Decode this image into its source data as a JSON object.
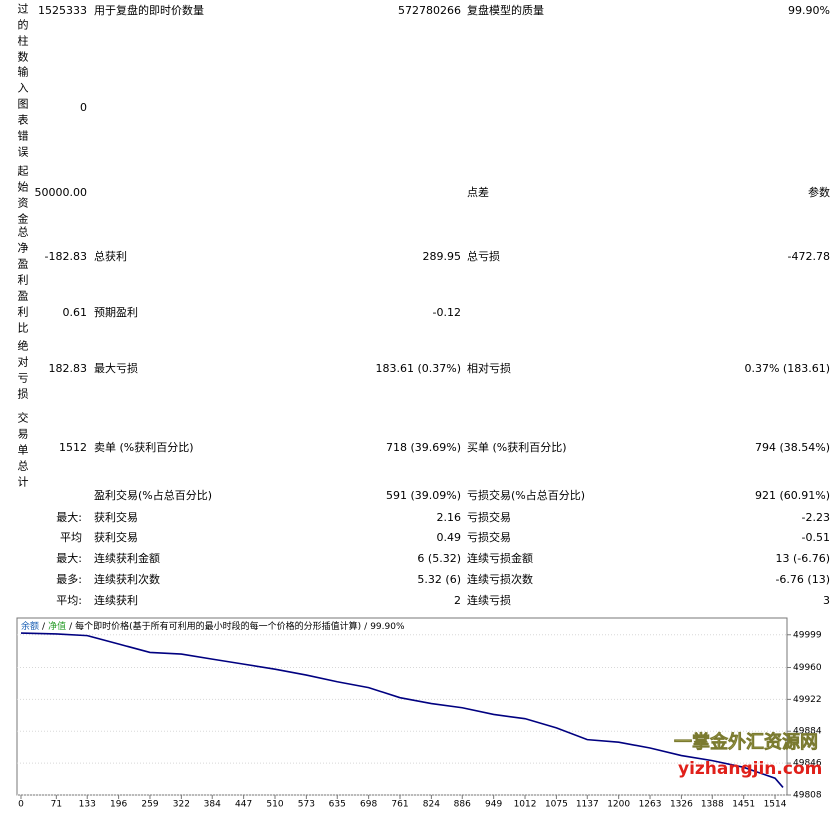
{
  "report": {
    "rows": [
      {
        "side": "过的柱数",
        "v1": "1525333",
        "l2": "用于复盘的即时价数量",
        "v2": "572780266",
        "l3": "复盘模型的质量",
        "v3": "99.90%"
      },
      {
        "side": "输入图表错误",
        "v1": "0"
      },
      {
        "side": "起始资金",
        "v1": "50000.00",
        "l3": "点差",
        "v3": "参数"
      },
      {
        "side": "总净盈利",
        "v1": "-182.83",
        "l2": "总获利",
        "v2": "289.95",
        "l3": "总亏损",
        "v3": "-472.78"
      },
      {
        "side": "盈利比",
        "v1": "0.61",
        "l2": "预期盈利",
        "v2": "-0.12"
      },
      {
        "side": "绝对亏损",
        "v1": "182.83",
        "l2": "最大亏损",
        "v2": "183.61 (0.37%)",
        "l3": "相对亏损",
        "v3": "0.37% (183.61)"
      },
      {
        "side": "交易单总计",
        "v1": "1512",
        "l2": "卖单 (%获利百分比)",
        "v2": "718 (39.69%)",
        "l3": "买单 (%获利百分比)",
        "v3": "794 (38.54%)"
      },
      {
        "l2": "盈利交易(%占总百分比)",
        "v2": "591 (39.09%)",
        "l3": "亏损交易(%占总百分比)",
        "v3": "921 (60.91%)"
      },
      {
        "pre": "最大:",
        "l2": "获利交易",
        "v2": "2.16",
        "l3": "亏损交易",
        "v3": "-2.23"
      },
      {
        "pre": "平均",
        "l2": "获利交易",
        "v2": "0.49",
        "l3": "亏损交易",
        "v3": "-0.51"
      },
      {
        "pre": "最大:",
        "l2": "连续获利金额",
        "v2": "6 (5.32)",
        "l3": "连续亏损金额",
        "v3": "13 (-6.76)"
      },
      {
        "pre": "最多:",
        "l2": "连续获利次数",
        "v2": "5.32 (6)",
        "l3": "连续亏损次数",
        "v3": "-6.76 (13)"
      },
      {
        "pre": "平均:",
        "l2": "连续获利",
        "v2": "2",
        "l3": "连续亏损",
        "v3": "3"
      }
    ]
  },
  "chart_data": {
    "type": "line",
    "legend": [
      "余额",
      "净值",
      "每个即时价格(基于所有可利用的最小时段的每一个价格的分形插值计算)",
      "99.90%"
    ],
    "legend_separator": "/",
    "x": [
      0,
      71,
      133,
      196,
      259,
      322,
      384,
      447,
      510,
      573,
      635,
      698,
      761,
      824,
      886,
      949,
      1012,
      1075,
      1137,
      1200,
      1263,
      1326,
      1388,
      1451,
      1514,
      1530
    ],
    "series": [
      {
        "name": "余额",
        "color": "#000080",
        "values": [
          50001,
          50000,
          49998,
          49988,
          49978,
          49976,
          49970,
          49964,
          49958,
          49951,
          49943,
          49936,
          49924,
          49917,
          49912,
          49904,
          49899,
          49888,
          49874,
          49871,
          49864,
          49855,
          49849,
          49841,
          49828,
          49817
        ]
      }
    ],
    "xlim": [
      -8,
      1538
    ],
    "xticks": [
      0,
      71,
      133,
      196,
      259,
      322,
      384,
      447,
      510,
      573,
      635,
      698,
      761,
      824,
      886,
      949,
      1012,
      1075,
      1137,
      1200,
      1263,
      1326,
      1388,
      1451,
      1514
    ],
    "ylim": [
      49808,
      50019
    ],
    "yticks": [
      49808,
      49846,
      49884,
      49922,
      49960,
      49999
    ],
    "grid": true
  },
  "watermark": {
    "title": "一掌金外汇资源网",
    "url": "yizhangjin.com"
  }
}
